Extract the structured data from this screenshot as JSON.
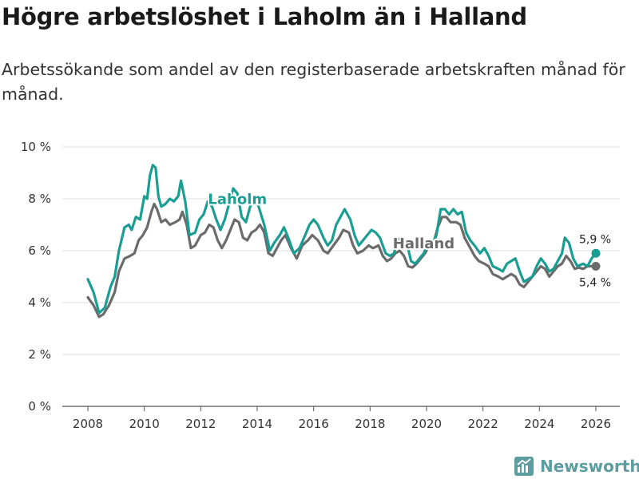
{
  "title": "Högre arbetslöshet i Laholm än i Halland",
  "subtitle": "Arbetssökande som andel av den registerbaserade arbetskraften månad för månad.",
  "brand": "Newsworthy",
  "colors": {
    "laholm": "#1a9e93",
    "halland": "#6b6b6b",
    "grid": "#dddddd",
    "axis": "#555555",
    "brand": "#5b9da0"
  },
  "chart_data": {
    "type": "line",
    "title": "Högre arbetslöshet i Laholm än i Halland",
    "xlabel": "",
    "ylabel": "",
    "xlim": [
      2008,
      2026
    ],
    "ylim": [
      0,
      10
    ],
    "x_ticks": [
      2008,
      2010,
      2012,
      2014,
      2016,
      2018,
      2020,
      2022,
      2024,
      2026
    ],
    "y_ticks": [
      0,
      2,
      4,
      6,
      8,
      10
    ],
    "y_tick_labels": [
      "0 %",
      "2 %",
      "4 %",
      "6 %",
      "8 %",
      "10 %"
    ],
    "grid": true,
    "series": [
      {
        "name": "Laholm",
        "label_at": [
          2013.3,
          7.8
        ],
        "end_label": "5,9 %",
        "points": [
          [
            2008.0,
            4.9
          ],
          [
            2008.2,
            4.4
          ],
          [
            2008.4,
            3.6
          ],
          [
            2008.6,
            3.8
          ],
          [
            2008.8,
            4.6
          ],
          [
            2008.95,
            5.0
          ],
          [
            2009.1,
            6.0
          ],
          [
            2009.3,
            6.9
          ],
          [
            2009.45,
            7.0
          ],
          [
            2009.55,
            6.8
          ],
          [
            2009.7,
            7.3
          ],
          [
            2009.85,
            7.2
          ],
          [
            2010.0,
            8.1
          ],
          [
            2010.1,
            8.0
          ],
          [
            2010.2,
            8.9
          ],
          [
            2010.3,
            9.3
          ],
          [
            2010.4,
            9.2
          ],
          [
            2010.5,
            8.1
          ],
          [
            2010.6,
            7.7
          ],
          [
            2010.75,
            7.8
          ],
          [
            2010.9,
            8.0
          ],
          [
            2011.05,
            7.9
          ],
          [
            2011.2,
            8.1
          ],
          [
            2011.3,
            8.7
          ],
          [
            2011.45,
            7.9
          ],
          [
            2011.6,
            6.6
          ],
          [
            2011.8,
            6.7
          ],
          [
            2011.95,
            7.2
          ],
          [
            2012.1,
            7.4
          ],
          [
            2012.25,
            7.9
          ],
          [
            2012.4,
            7.7
          ],
          [
            2012.55,
            7.2
          ],
          [
            2012.7,
            6.8
          ],
          [
            2012.85,
            7.2
          ],
          [
            2013.0,
            7.8
          ],
          [
            2013.15,
            8.4
          ],
          [
            2013.3,
            8.2
          ],
          [
            2013.45,
            7.3
          ],
          [
            2013.6,
            7.1
          ],
          [
            2013.75,
            7.7
          ],
          [
            2013.9,
            8.0
          ],
          [
            2014.05,
            7.7
          ],
          [
            2014.25,
            7.0
          ],
          [
            2014.45,
            6.0
          ],
          [
            2014.6,
            6.3
          ],
          [
            2014.8,
            6.6
          ],
          [
            2014.95,
            6.9
          ],
          [
            2015.1,
            6.5
          ],
          [
            2015.3,
            5.9
          ],
          [
            2015.5,
            6.1
          ],
          [
            2015.7,
            6.6
          ],
          [
            2015.85,
            7.0
          ],
          [
            2016.0,
            7.2
          ],
          [
            2016.15,
            7.0
          ],
          [
            2016.35,
            6.5
          ],
          [
            2016.5,
            6.2
          ],
          [
            2016.65,
            6.4
          ],
          [
            2016.8,
            7.0
          ],
          [
            2016.95,
            7.3
          ],
          [
            2017.1,
            7.6
          ],
          [
            2017.3,
            7.2
          ],
          [
            2017.45,
            6.6
          ],
          [
            2017.6,
            6.2
          ],
          [
            2017.75,
            6.4
          ],
          [
            2017.9,
            6.6
          ],
          [
            2018.05,
            6.8
          ],
          [
            2018.2,
            6.7
          ],
          [
            2018.35,
            6.5
          ],
          [
            2018.55,
            5.9
          ],
          [
            2018.7,
            5.8
          ],
          [
            2018.85,
            5.9
          ],
          [
            2018.95,
            6.4
          ],
          [
            2019.1,
            6.5
          ],
          [
            2019.3,
            6.3
          ],
          [
            2019.45,
            5.6
          ],
          [
            2019.6,
            5.5
          ],
          [
            2019.75,
            5.7
          ],
          [
            2019.9,
            5.9
          ],
          [
            2020.05,
            6.3
          ],
          [
            2020.2,
            6.2
          ],
          [
            2020.35,
            6.6
          ],
          [
            2020.5,
            7.6
          ],
          [
            2020.65,
            7.6
          ],
          [
            2020.8,
            7.4
          ],
          [
            2020.95,
            7.6
          ],
          [
            2021.1,
            7.4
          ],
          [
            2021.25,
            7.5
          ],
          [
            2021.4,
            6.7
          ],
          [
            2021.55,
            6.4
          ],
          [
            2021.7,
            6.2
          ],
          [
            2021.9,
            5.9
          ],
          [
            2022.05,
            6.1
          ],
          [
            2022.2,
            5.8
          ],
          [
            2022.35,
            5.4
          ],
          [
            2022.55,
            5.3
          ],
          [
            2022.7,
            5.2
          ],
          [
            2022.85,
            5.5
          ],
          [
            2023.0,
            5.6
          ],
          [
            2023.15,
            5.7
          ],
          [
            2023.3,
            5.2
          ],
          [
            2023.45,
            4.8
          ],
          [
            2023.6,
            4.9
          ],
          [
            2023.75,
            5.0
          ],
          [
            2023.9,
            5.4
          ],
          [
            2024.05,
            5.7
          ],
          [
            2024.2,
            5.5
          ],
          [
            2024.35,
            5.2
          ],
          [
            2024.5,
            5.3
          ],
          [
            2024.65,
            5.6
          ],
          [
            2024.8,
            5.9
          ],
          [
            2024.9,
            6.5
          ],
          [
            2025.05,
            6.3
          ],
          [
            2025.2,
            5.7
          ],
          [
            2025.35,
            5.4
          ],
          [
            2025.55,
            5.5
          ],
          [
            2025.7,
            5.4
          ],
          [
            2025.85,
            5.7
          ],
          [
            2026.0,
            5.9
          ]
        ]
      },
      {
        "name": "Halland",
        "label_at": [
          2019.9,
          6.1
        ],
        "end_label": "5,4 %",
        "points": [
          [
            2008.0,
            4.2
          ],
          [
            2008.2,
            3.9
          ],
          [
            2008.4,
            3.45
          ],
          [
            2008.55,
            3.55
          ],
          [
            2008.75,
            3.9
          ],
          [
            2008.95,
            4.4
          ],
          [
            2009.1,
            5.2
          ],
          [
            2009.3,
            5.7
          ],
          [
            2009.5,
            5.8
          ],
          [
            2009.65,
            5.9
          ],
          [
            2009.8,
            6.4
          ],
          [
            2009.95,
            6.6
          ],
          [
            2010.1,
            6.9
          ],
          [
            2010.25,
            7.5
          ],
          [
            2010.35,
            7.8
          ],
          [
            2010.45,
            7.6
          ],
          [
            2010.6,
            7.1
          ],
          [
            2010.75,
            7.2
          ],
          [
            2010.9,
            7.0
          ],
          [
            2011.1,
            7.1
          ],
          [
            2011.25,
            7.2
          ],
          [
            2011.35,
            7.5
          ],
          [
            2011.5,
            7.0
          ],
          [
            2011.65,
            6.1
          ],
          [
            2011.8,
            6.2
          ],
          [
            2012.0,
            6.6
          ],
          [
            2012.15,
            6.7
          ],
          [
            2012.3,
            7.0
          ],
          [
            2012.45,
            6.9
          ],
          [
            2012.6,
            6.4
          ],
          [
            2012.75,
            6.1
          ],
          [
            2012.9,
            6.4
          ],
          [
            2013.05,
            6.8
          ],
          [
            2013.2,
            7.2
          ],
          [
            2013.35,
            7.1
          ],
          [
            2013.5,
            6.5
          ],
          [
            2013.65,
            6.4
          ],
          [
            2013.8,
            6.7
          ],
          [
            2013.95,
            6.8
          ],
          [
            2014.1,
            7.0
          ],
          [
            2014.25,
            6.7
          ],
          [
            2014.4,
            5.9
          ],
          [
            2014.55,
            5.8
          ],
          [
            2014.7,
            6.1
          ],
          [
            2014.85,
            6.4
          ],
          [
            2015.0,
            6.6
          ],
          [
            2015.2,
            6.1
          ],
          [
            2015.4,
            5.7
          ],
          [
            2015.6,
            6.2
          ],
          [
            2015.8,
            6.4
          ],
          [
            2015.95,
            6.6
          ],
          [
            2016.15,
            6.4
          ],
          [
            2016.35,
            6.0
          ],
          [
            2016.5,
            5.9
          ],
          [
            2016.7,
            6.2
          ],
          [
            2016.9,
            6.5
          ],
          [
            2017.05,
            6.8
          ],
          [
            2017.25,
            6.7
          ],
          [
            2017.4,
            6.2
          ],
          [
            2017.55,
            5.9
          ],
          [
            2017.75,
            6.0
          ],
          [
            2017.95,
            6.2
          ],
          [
            2018.1,
            6.1
          ],
          [
            2018.3,
            6.2
          ],
          [
            2018.45,
            5.8
          ],
          [
            2018.6,
            5.6
          ],
          [
            2018.75,
            5.7
          ],
          [
            2018.9,
            5.9
          ],
          [
            2019.05,
            6.0
          ],
          [
            2019.2,
            5.8
          ],
          [
            2019.35,
            5.4
          ],
          [
            2019.5,
            5.35
          ],
          [
            2019.65,
            5.5
          ],
          [
            2019.8,
            5.7
          ],
          [
            2019.95,
            5.9
          ],
          [
            2020.1,
            6.2
          ],
          [
            2020.25,
            6.3
          ],
          [
            2020.4,
            6.9
          ],
          [
            2020.55,
            7.3
          ],
          [
            2020.7,
            7.3
          ],
          [
            2020.85,
            7.1
          ],
          [
            2021.05,
            7.1
          ],
          [
            2021.2,
            7.0
          ],
          [
            2021.35,
            6.5
          ],
          [
            2021.5,
            6.2
          ],
          [
            2021.7,
            5.8
          ],
          [
            2021.85,
            5.6
          ],
          [
            2022.05,
            5.5
          ],
          [
            2022.2,
            5.4
          ],
          [
            2022.35,
            5.1
          ],
          [
            2022.55,
            5.0
          ],
          [
            2022.7,
            4.9
          ],
          [
            2022.85,
            5.0
          ],
          [
            2023.0,
            5.1
          ],
          [
            2023.15,
            5.0
          ],
          [
            2023.3,
            4.7
          ],
          [
            2023.45,
            4.6
          ],
          [
            2023.6,
            4.8
          ],
          [
            2023.75,
            5.0
          ],
          [
            2023.9,
            5.2
          ],
          [
            2024.05,
            5.4
          ],
          [
            2024.2,
            5.3
          ],
          [
            2024.35,
            5.0
          ],
          [
            2024.5,
            5.2
          ],
          [
            2024.65,
            5.4
          ],
          [
            2024.8,
            5.5
          ],
          [
            2024.95,
            5.8
          ],
          [
            2025.1,
            5.6
          ],
          [
            2025.25,
            5.3
          ],
          [
            2025.4,
            5.35
          ],
          [
            2025.55,
            5.3
          ],
          [
            2025.7,
            5.4
          ],
          [
            2025.85,
            5.4
          ],
          [
            2026.0,
            5.4
          ]
        ]
      }
    ]
  }
}
